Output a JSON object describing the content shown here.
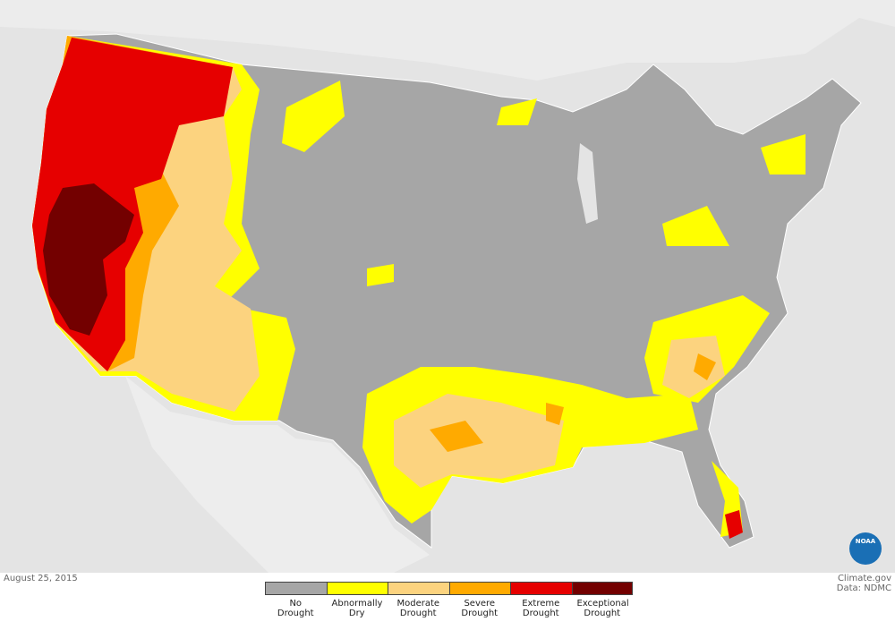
{
  "date": "August 25, 2015",
  "credits": [
    "Climate.gov",
    "Data: NDMC"
  ],
  "logo": "NOAA",
  "legend": [
    {
      "label": "No Drought",
      "color": "#a6a6a6"
    },
    {
      "label": "Abnormally Dry",
      "color": "#ffff00"
    },
    {
      "label": "Moderate Drought",
      "color": "#fcd37f"
    },
    {
      "label": "Severe Drought",
      "color": "#ffaa00"
    },
    {
      "label": "Extreme Drought",
      "color": "#e60000"
    },
    {
      "label": "Exceptional Drought",
      "color": "#730000"
    }
  ]
}
